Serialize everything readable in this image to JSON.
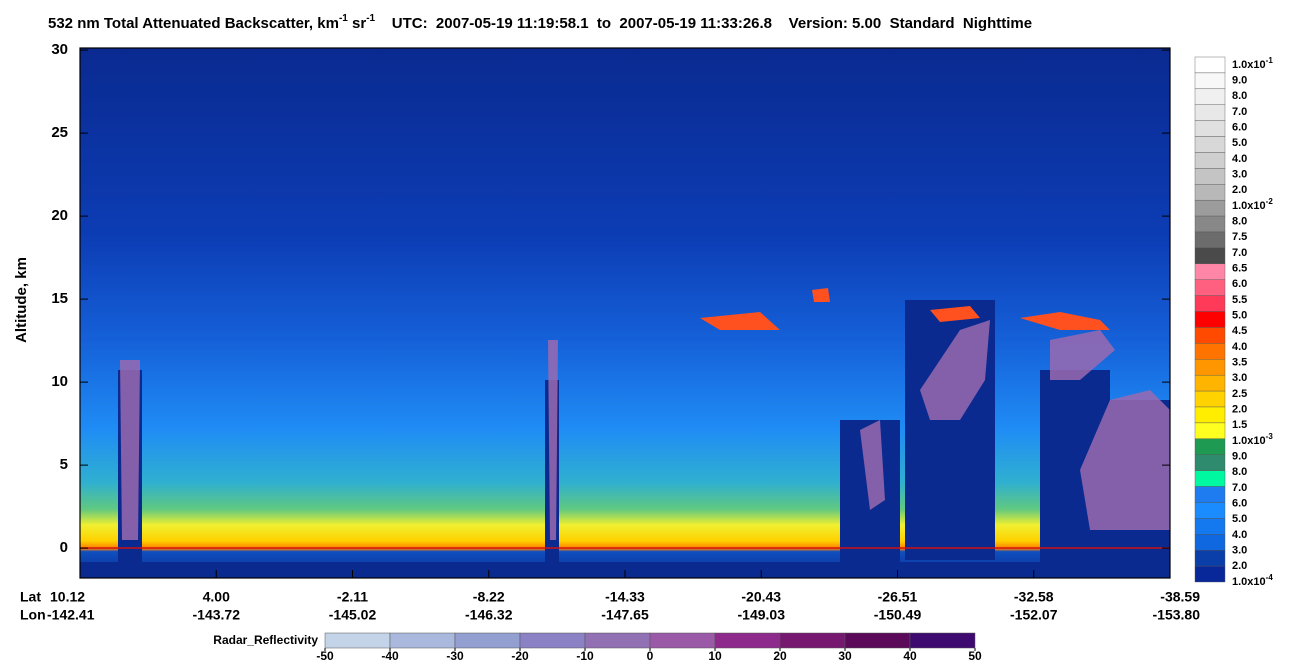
{
  "chart_data": {
    "type": "curtain",
    "title": [
      "532 nm Total Attenuated Backscatter, km",
      "-1",
      " sr",
      "-1",
      "    UTC:  2007-05-19 11:19:58.1  to  2007-05-19 11:33:26.8    Version: 5.00  Standard  Nighttime"
    ],
    "y_label": "Altitude, km",
    "ylim": [
      -1.8,
      30
    ],
    "yticks": [
      0,
      5,
      10,
      15,
      20,
      25,
      30
    ],
    "x_row_names": [
      "Lat",
      "Lon"
    ],
    "lat": [
      "10.12",
      "4.00",
      "-2.11",
      "-8.22",
      "-14.33",
      "-20.43",
      "-26.51",
      "-32.58",
      "-38.59"
    ],
    "lon": [
      "-142.41",
      "-143.72",
      "-145.02",
      "-146.32",
      "-147.65",
      "-149.03",
      "-150.49",
      "-152.07",
      "-153.80"
    ],
    "colorbar": {
      "labels": [
        {
          "text": "1.0x10",
          "sup": "-1"
        },
        "9.0",
        "8.0",
        "7.0",
        "6.0",
        "5.0",
        "4.0",
        "3.0",
        "2.0",
        {
          "text": "1.0x10",
          "sup": "-2"
        },
        "8.0",
        "7.5",
        "7.0",
        "6.5",
        "6.0",
        "5.5",
        "5.0",
        "4.5",
        "4.0",
        "3.5",
        "3.0",
        "2.5",
        "2.0",
        "1.5",
        {
          "text": "1.0x10",
          "sup": "-3"
        },
        "9.0",
        "8.0",
        "7.0",
        "6.0",
        "5.0",
        "4.0",
        "3.0",
        "2.0",
        {
          "text": "1.0x10",
          "sup": "-4"
        }
      ],
      "colors": [
        "#ffffff",
        "#f8f8f8",
        "#f0f0f0",
        "#e8e8e8",
        "#e0e0e0",
        "#d8d8d8",
        "#cfcfcf",
        "#c4c4c4",
        "#b8b8b8",
        "#9c9c9c",
        "#888888",
        "#6c6c6c",
        "#4a4a4a",
        "#ff86a6",
        "#ff6080",
        "#ff3a58",
        "#ff0000",
        "#ff4a00",
        "#ff7400",
        "#ff9600",
        "#ffb400",
        "#ffd200",
        "#ffee00",
        "#ffff20",
        "#1e9a52",
        "#2e8b6e",
        "#00f8a0",
        "#1e7cf0",
        "#1a8cff",
        "#1478ee",
        "#1068e0",
        "#0a3ea8",
        "#08289a"
      ]
    },
    "radar": {
      "label": "Radar_Reflectivity",
      "ticks": [
        -50,
        -40,
        -30,
        -20,
        -10,
        0,
        10,
        20,
        30,
        40,
        50
      ],
      "colors": [
        "#c3d3e8",
        "#a9b8dc",
        "#929fd0",
        "#8a82c4",
        "#9270b4",
        "#9a5aa8",
        "#8e2a8c",
        "#761870",
        "#5a0a58",
        "#3e0a70"
      ]
    }
  }
}
